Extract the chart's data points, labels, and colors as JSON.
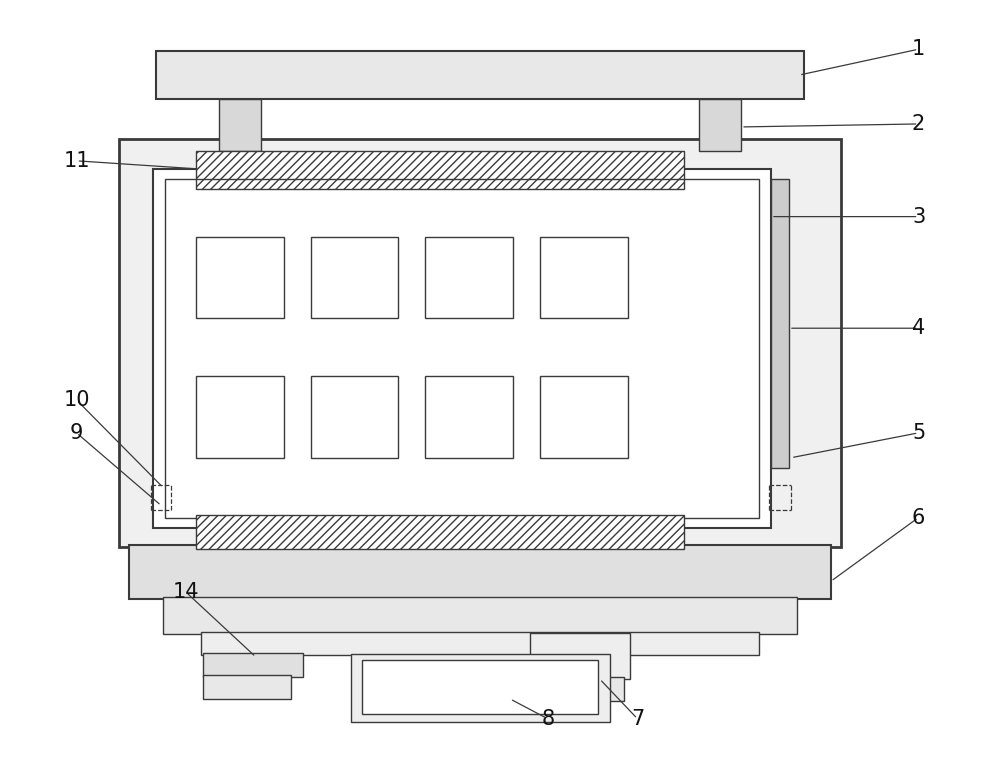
{
  "bg_color": "#ffffff",
  "line_color": "#3a3a3a",
  "fig_width": 10.0,
  "fig_height": 7.78,
  "dpi": 100
}
